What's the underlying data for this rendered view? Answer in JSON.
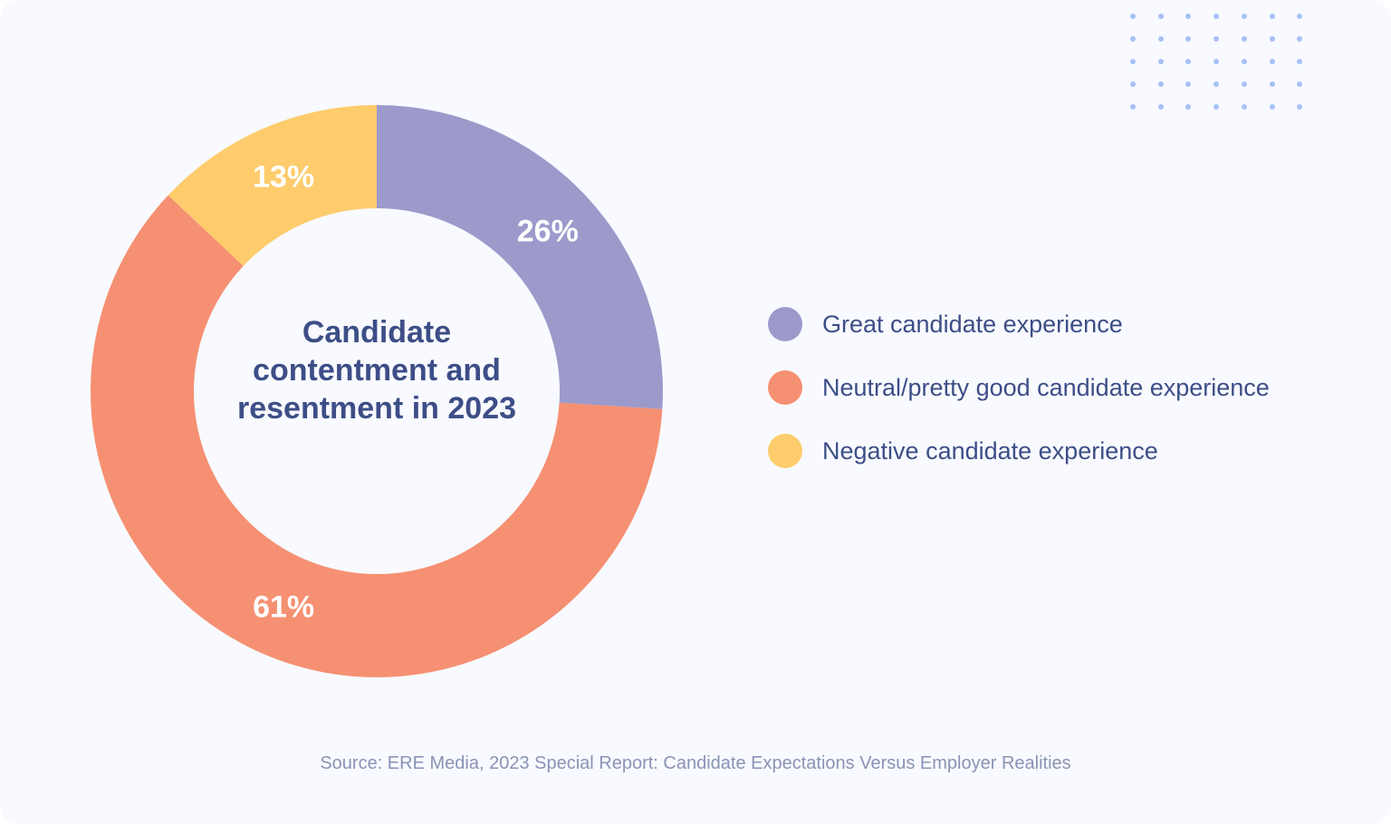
{
  "chart_data": {
    "type": "pie",
    "donut": true,
    "title": "Candidate contentment and resentment in 2023",
    "categories": [
      "Great candidate experience",
      "Neutral/pretty good candidate experience",
      "Negative candidate experience"
    ],
    "values": [
      26,
      61,
      13
    ],
    "data_labels": [
      "26%",
      "61%",
      "13%"
    ],
    "colors": [
      "#9b9acb",
      "#f69072",
      "#fecc6c"
    ],
    "legend_position": "right",
    "start_angle": "top, clockwise"
  },
  "source": "Source: ERE Media, 2023 Special Report: Candidate Expectations Versus Employer Realities",
  "colors": {
    "background": "#f8faff",
    "text": "#3d4e87",
    "source_text": "#8a93b5",
    "dots": "#a8c0f5"
  }
}
